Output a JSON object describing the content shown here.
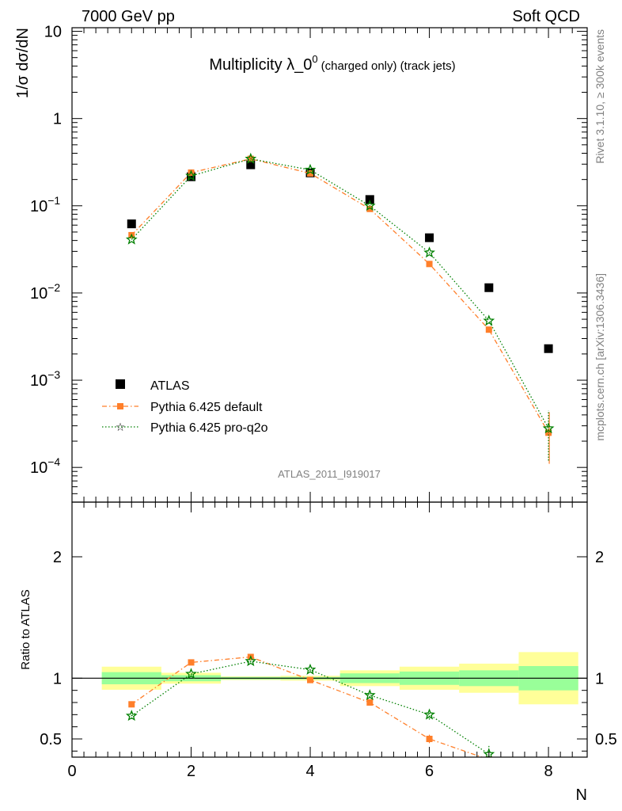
{
  "header": {
    "left": "7000 GeV pp",
    "right": "Soft QCD"
  },
  "side_labels": {
    "rivet": "Rivet 3.1.10, ≥ 300k events",
    "mcplots": "mcplots.cern.ch [arXiv:1306.3436]"
  },
  "chart_data": [
    {
      "type": "scatter",
      "title_main": "Multiplicity λ_0",
      "title_sup": "0",
      "title_paren": "(charged only) (track jets)",
      "ylabel": "1/σ dσ/dN",
      "yscale": "log",
      "ylim": [
        4e-05,
        11
      ],
      "xlim": [
        0,
        8.65
      ],
      "ytick_labels": [
        {
          "value": 10,
          "label": "10"
        },
        {
          "value": 1,
          "label": "1"
        },
        {
          "value": 0.1,
          "label": "10",
          "exp": "−1"
        },
        {
          "value": 0.01,
          "label": "10",
          "exp": "−2"
        },
        {
          "value": 0.001,
          "label": "10",
          "exp": "−3"
        },
        {
          "value": 0.0001,
          "label": "10",
          "exp": "−4"
        }
      ],
      "watermark": "ATLAS_2011_I919017",
      "legend": {
        "placement": "bottom-left",
        "entries": [
          "ATLAS",
          "Pythia 6.425 default",
          "Pythia 6.425 pro-q2o"
        ]
      },
      "series": [
        {
          "name": "ATLAS",
          "marker": "square",
          "color": "#000000",
          "x": [
            1,
            2,
            3,
            4,
            5,
            6,
            7,
            8
          ],
          "y": [
            0.062,
            0.215,
            0.295,
            0.238,
            0.118,
            0.043,
            0.0115,
            0.0023
          ]
        },
        {
          "name": "Pythia 6.425 default",
          "marker": "square",
          "color": "#ff7f2a",
          "line": "dash-dot",
          "x": [
            1,
            2,
            3,
            4,
            5,
            6,
            7,
            8
          ],
          "y": [
            0.046,
            0.24,
            0.345,
            0.235,
            0.092,
            0.0215,
            0.0038,
            0.00025
          ],
          "yerr_low": [
            0,
            0,
            0,
            0,
            0,
            0,
            0,
            0.00014
          ],
          "yerr_high": [
            0,
            0,
            0,
            0,
            0,
            0,
            0,
            0.00018
          ]
        },
        {
          "name": "Pythia 6.425 pro-q2o",
          "marker": "star",
          "color": "#008000",
          "line": "dotted",
          "x": [
            1,
            2,
            3,
            4,
            5,
            6,
            7,
            8
          ],
          "y": [
            0.041,
            0.22,
            0.345,
            0.258,
            0.1,
            0.029,
            0.0048,
            0.00028
          ],
          "yerr_low": [
            0,
            0,
            0,
            0,
            0,
            0,
            0,
            0.00016
          ],
          "yerr_high": [
            0,
            0,
            0,
            0,
            0,
            0,
            0,
            0.00017
          ]
        }
      ]
    },
    {
      "type": "scatter",
      "ylabel": "Ratio to ATLAS",
      "xlabel": "N",
      "ylim": [
        0.35,
        2.45
      ],
      "xlim": [
        0,
        8.65
      ],
      "xticks": [
        0,
        2,
        4,
        6,
        8
      ],
      "yticks": [
        0.5,
        1,
        2
      ],
      "bands": {
        "x_edges": [
          0.5,
          1.5,
          2.5,
          3.5,
          4.5,
          5.5,
          6.5,
          7.5,
          8.5
        ],
        "stat_low": [
          0.95,
          0.975,
          0.99,
          0.99,
          0.96,
          0.945,
          0.935,
          0.9
        ],
        "stat_high": [
          1.05,
          1.025,
          1.01,
          1.01,
          1.04,
          1.055,
          1.065,
          1.1
        ],
        "total_low": [
          0.905,
          0.955,
          0.985,
          0.98,
          0.935,
          0.905,
          0.88,
          0.785
        ],
        "total_high": [
          1.095,
          1.045,
          1.015,
          1.02,
          1.065,
          1.095,
          1.12,
          1.215
        ]
      },
      "series": [
        {
          "name": "Pythia 6.425 default",
          "color": "#ff7f2a",
          "x": [
            1,
            2,
            3,
            4,
            5,
            6,
            7
          ],
          "y": [
            0.785,
            1.13,
            1.175,
            0.985,
            0.8,
            0.5,
            0.33
          ],
          "yerr": [
            0.025,
            0.01,
            0.01,
            0.01,
            0.015,
            0.035,
            0
          ]
        },
        {
          "name": "Pythia 6.425 pro-q2o",
          "color": "#008000",
          "x": [
            1,
            2,
            3,
            4,
            5,
            6,
            7
          ],
          "y": [
            0.69,
            1.035,
            1.14,
            1.07,
            0.86,
            0.7,
            0.375
          ],
          "yerr": [
            0.025,
            0.01,
            0.01,
            0.01,
            0.015,
            0.04,
            0.08
          ]
        }
      ]
    }
  ]
}
